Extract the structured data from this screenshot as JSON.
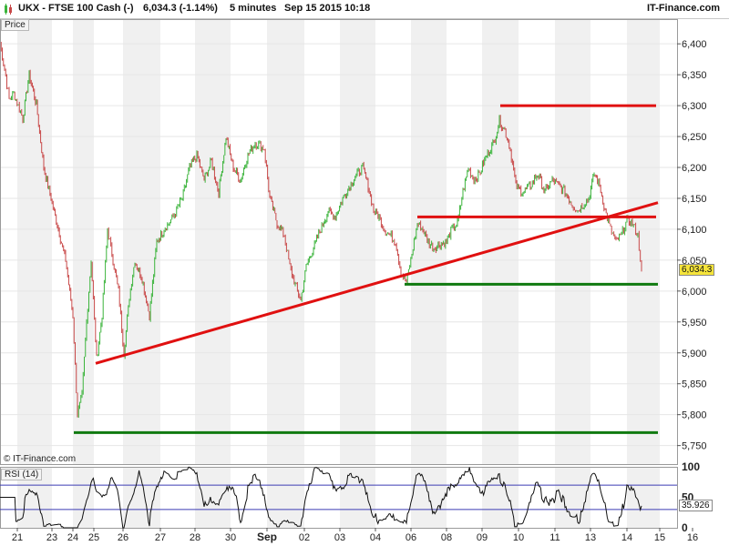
{
  "header": {
    "symbol": "UKX - FTSE 100 Cash (-)",
    "last": "6,034.3 (-1.14%)",
    "interval": "5 minutes",
    "datetime": "Sep 15 2015 10:18",
    "brand": "IT-Finance.com"
  },
  "labels": {
    "price_panel": "Price",
    "rsi_panel": "RSI (14)",
    "copyright": "© IT-Finance.com",
    "last_price_tag": "6,034.3",
    "last_rsi_tag": "35.926"
  },
  "colors": {
    "up": "#3cb43c",
    "down": "#c84848",
    "resistance": "#e01010",
    "support": "#107a10",
    "band": "#f0f0f0",
    "rsi_line": "#111111",
    "rsi_level": "#3c3cb4"
  },
  "chart_data": [
    {
      "type": "line",
      "name": "price",
      "ylim": [
        5720,
        6440
      ],
      "y_ticks": [
        5750,
        5800,
        5850,
        5900,
        5950,
        6000,
        6050,
        6100,
        6150,
        6200,
        6250,
        6300,
        6350,
        6400
      ],
      "y_tick_labels": [
        "5,750",
        "5,800",
        "5,850",
        "5,900",
        "5,950",
        "6,000",
        "6,050",
        "6,100",
        "6,150",
        "6,200",
        "6,250",
        "6,300",
        "6,350",
        "6,400"
      ],
      "x_ticks": [
        "21",
        "23",
        "24",
        "25",
        "26",
        "27",
        "28",
        "30",
        "Sep",
        "02",
        "03",
        "04",
        "06",
        "08",
        "09",
        "10",
        "11",
        "13",
        "14",
        "15",
        "16"
      ],
      "anchors": [
        [
          0,
          6400
        ],
        [
          5,
          6360
        ],
        [
          10,
          6310
        ],
        [
          15,
          6320
        ],
        [
          20,
          6300
        ],
        [
          25,
          6280
        ],
        [
          32,
          6350
        ],
        [
          40,
          6300
        ],
        [
          48,
          6200
        ],
        [
          56,
          6150
        ],
        [
          64,
          6100
        ],
        [
          72,
          6050
        ],
        [
          80,
          5960
        ],
        [
          85,
          5800
        ],
        [
          90,
          5830
        ],
        [
          95,
          5950
        ],
        [
          100,
          6050
        ],
        [
          106,
          5890
        ],
        [
          112,
          5960
        ],
        [
          118,
          6100
        ],
        [
          124,
          6050
        ],
        [
          130,
          6000
        ],
        [
          136,
          5900
        ],
        [
          142,
          5990
        ],
        [
          148,
          6050
        ],
        [
          156,
          6020
        ],
        [
          164,
          5960
        ],
        [
          172,
          6080
        ],
        [
          180,
          6100
        ],
        [
          190,
          6120
        ],
        [
          200,
          6150
        ],
        [
          208,
          6200
        ],
        [
          216,
          6220
        ],
        [
          224,
          6180
        ],
        [
          232,
          6210
        ],
        [
          240,
          6160
        ],
        [
          248,
          6250
        ],
        [
          256,
          6200
        ],
        [
          264,
          6180
        ],
        [
          272,
          6220
        ],
        [
          280,
          6240
        ],
        [
          290,
          6230
        ],
        [
          296,
          6150
        ],
        [
          304,
          6110
        ],
        [
          312,
          6090
        ],
        [
          318,
          6040
        ],
        [
          324,
          6010
        ],
        [
          330,
          5985
        ],
        [
          336,
          6040
        ],
        [
          344,
          6070
        ],
        [
          352,
          6100
        ],
        [
          360,
          6130
        ],
        [
          368,
          6120
        ],
        [
          376,
          6150
        ],
        [
          384,
          6170
        ],
        [
          392,
          6190
        ],
        [
          398,
          6200
        ],
        [
          404,
          6170
        ],
        [
          410,
          6130
        ],
        [
          416,
          6120
        ],
        [
          422,
          6100
        ],
        [
          428,
          6090
        ],
        [
          434,
          6080
        ],
        [
          440,
          6030
        ],
        [
          446,
          6015
        ],
        [
          452,
          6060
        ],
        [
          458,
          6110
        ],
        [
          464,
          6100
        ],
        [
          470,
          6080
        ],
        [
          476,
          6070
        ],
        [
          482,
          6075
        ],
        [
          490,
          6080
        ],
        [
          496,
          6100
        ],
        [
          502,
          6110
        ],
        [
          508,
          6160
        ],
        [
          514,
          6200
        ],
        [
          520,
          6180
        ],
        [
          526,
          6190
        ],
        [
          534,
          6220
        ],
        [
          542,
          6240
        ],
        [
          548,
          6275
        ],
        [
          554,
          6260
        ],
        [
          560,
          6230
        ],
        [
          566,
          6170
        ],
        [
          574,
          6160
        ],
        [
          582,
          6170
        ],
        [
          590,
          6190
        ],
        [
          598,
          6160
        ],
        [
          606,
          6180
        ],
        [
          614,
          6170
        ],
        [
          620,
          6160
        ],
        [
          628,
          6140
        ],
        [
          634,
          6130
        ],
        [
          640,
          6140
        ],
        [
          646,
          6150
        ],
        [
          652,
          6190
        ],
        [
          658,
          6170
        ],
        [
          664,
          6130
        ],
        [
          670,
          6100
        ],
        [
          676,
          6080
        ],
        [
          682,
          6090
        ],
        [
          688,
          6115
        ],
        [
          694,
          6110
        ],
        [
          700,
          6090
        ],
        [
          704,
          6034
        ]
      ],
      "trendlines": [
        {
          "role": "resistance",
          "x": [
            549,
            720
          ],
          "y": [
            6300,
            6300
          ]
        },
        {
          "role": "resistance",
          "x": [
            458,
            720
          ],
          "y": [
            6120,
            6120
          ]
        },
        {
          "role": "resistance",
          "x": [
            105,
            722
          ],
          "y": [
            5883,
            6143
          ]
        },
        {
          "role": "support",
          "x": [
            444,
            722
          ],
          "y": [
            6011,
            6011
          ]
        },
        {
          "role": "support",
          "x": [
            81,
            722
          ],
          "y": [
            5771,
            5771
          ]
        }
      ]
    },
    {
      "type": "line",
      "name": "RSI (14)",
      "ylim": [
        0,
        100
      ],
      "y_ticks": [
        0,
        50,
        100
      ],
      "levels": [
        70,
        30
      ],
      "last": 35.926
    }
  ]
}
